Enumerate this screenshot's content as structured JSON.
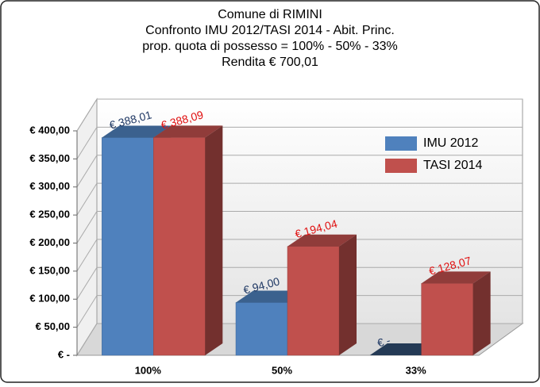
{
  "chart_data": {
    "type": "bar3d",
    "title": [
      "Comune di RIMINI",
      "Confronto IMU 2012/TASI 2014 - Abit. Princ.",
      "prop. quota di possesso = 100% - 50% - 33%",
      "Rendita € 700,01"
    ],
    "categories": [
      "100%",
      "50%",
      "33%"
    ],
    "series": [
      {
        "name": "IMU 2012",
        "color": "#4f81bd",
        "values": [
          388.01,
          94.0,
          0
        ],
        "value_labels": [
          "€ 388,01",
          "€ 94,00",
          "€ -"
        ],
        "label_color": "#1f3864"
      },
      {
        "name": "TASI 2014",
        "color": "#c0504d",
        "values": [
          388.09,
          194.04,
          128.07
        ],
        "value_labels": [
          "€ 388,09",
          "€ 194,04",
          "€ 128,07"
        ],
        "label_color": "#e01010"
      }
    ],
    "ylim": [
      0,
      400
    ],
    "yticks": [
      {
        "value": 0,
        "label": "€ -"
      },
      {
        "value": 50,
        "label": "€ 50,00"
      },
      {
        "value": 100,
        "label": "€ 100,00"
      },
      {
        "value": 150,
        "label": "€ 150,00"
      },
      {
        "value": 200,
        "label": "€ 200,00"
      },
      {
        "value": 250,
        "label": "€ 250,00"
      },
      {
        "value": 300,
        "label": "€ 300,00"
      },
      {
        "value": 350,
        "label": "€ 350,00"
      },
      {
        "value": 400,
        "label": "€ 400,00"
      }
    ],
    "grid": true,
    "legend": "right"
  }
}
